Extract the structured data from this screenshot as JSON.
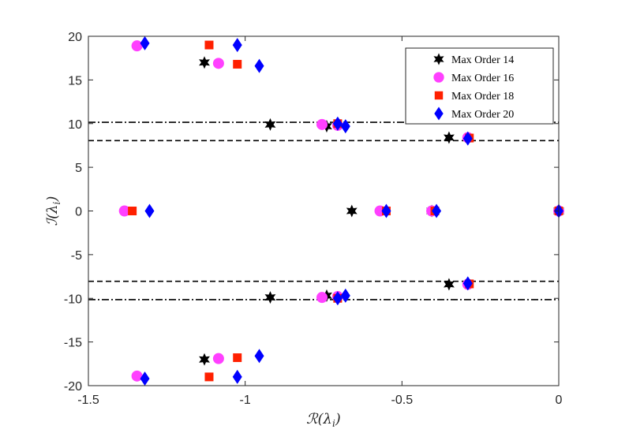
{
  "chart_data": {
    "type": "scatter",
    "title": "",
    "xlabel": "ℛ(λ_i)",
    "ylabel": "ℐ(λ_i)",
    "xlabel_main": "ℛ(λ",
    "xlabel_sub": "i",
    "ylabel_main": "ℐ(λ",
    "ylabel_sub": "i",
    "xlim": [
      -1.5,
      0
    ],
    "ylim": [
      -20,
      20
    ],
    "xticks": [
      -1.5,
      -1,
      -0.5,
      0
    ],
    "xtick_labels": [
      "-1.5",
      "-1",
      "-0.5",
      "0"
    ],
    "yticks": [
      -20,
      -15,
      -10,
      -5,
      0,
      5,
      10,
      15,
      20
    ],
    "ytick_labels": [
      "-20",
      "-15",
      "-10",
      "-5",
      "0",
      "5",
      "10",
      "15",
      "20"
    ],
    "grid": false,
    "legend_position": "top-right",
    "reference_lines": [
      {
        "y": 10.15,
        "style": "dashdot",
        "color": "#000000"
      },
      {
        "y": 8.05,
        "style": "dashed",
        "color": "#000000"
      },
      {
        "y": -8.05,
        "style": "dashed",
        "color": "#000000"
      },
      {
        "y": -10.15,
        "style": "dashdot",
        "color": "#000000"
      }
    ],
    "series": [
      {
        "name": "Max Order 14",
        "marker": "hexagram",
        "color": "#000000",
        "points": [
          {
            "x": -1.13,
            "y": 17.0
          },
          {
            "x": -1.13,
            "y": -17.0
          },
          {
            "x": -0.92,
            "y": 9.9
          },
          {
            "x": -0.92,
            "y": -9.9
          },
          {
            "x": -0.74,
            "y": 9.7
          },
          {
            "x": -0.74,
            "y": -9.7
          },
          {
            "x": -0.66,
            "y": 0
          },
          {
            "x": -0.405,
            "y": 0
          },
          {
            "x": -0.35,
            "y": 8.4
          },
          {
            "x": -0.35,
            "y": -8.4
          },
          {
            "x": 0,
            "y": 0
          }
        ]
      },
      {
        "name": "Max Order 16",
        "marker": "circle",
        "color": "#ff40ff",
        "points": [
          {
            "x": -1.345,
            "y": 18.9
          },
          {
            "x": -1.345,
            "y": -18.9
          },
          {
            "x": -1.085,
            "y": 16.9
          },
          {
            "x": -1.085,
            "y": -16.9
          },
          {
            "x": -0.755,
            "y": 9.9
          },
          {
            "x": -0.755,
            "y": -9.9
          },
          {
            "x": -0.705,
            "y": 9.8
          },
          {
            "x": -0.705,
            "y": -9.8
          },
          {
            "x": -1.385,
            "y": 0
          },
          {
            "x": -0.57,
            "y": 0
          },
          {
            "x": -0.405,
            "y": 0
          },
          {
            "x": -0.29,
            "y": 8.4
          },
          {
            "x": -0.29,
            "y": -8.4
          },
          {
            "x": 0,
            "y": 0
          }
        ]
      },
      {
        "name": "Max Order 18",
        "marker": "square",
        "color": "#ff2000",
        "points": [
          {
            "x": -1.115,
            "y": 19.0
          },
          {
            "x": -1.115,
            "y": -19.0
          },
          {
            "x": -1.025,
            "y": 16.8
          },
          {
            "x": -1.025,
            "y": -16.8
          },
          {
            "x": -0.705,
            "y": 10.0
          },
          {
            "x": -0.705,
            "y": -10.0
          },
          {
            "x": -1.36,
            "y": 0
          },
          {
            "x": -0.55,
            "y": 0
          },
          {
            "x": -0.395,
            "y": 0
          },
          {
            "x": -0.285,
            "y": 8.35
          },
          {
            "x": -0.285,
            "y": -8.35
          },
          {
            "x": 0,
            "y": 0
          }
        ]
      },
      {
        "name": "Max Order 20",
        "marker": "diamond",
        "color": "#0000ff",
        "points": [
          {
            "x": -1.32,
            "y": 19.2
          },
          {
            "x": -1.32,
            "y": -19.2
          },
          {
            "x": -1.025,
            "y": 19.0
          },
          {
            "x": -1.025,
            "y": -19.0
          },
          {
            "x": -0.955,
            "y": 16.6
          },
          {
            "x": -0.955,
            "y": -16.6
          },
          {
            "x": -0.705,
            "y": 10.0
          },
          {
            "x": -0.705,
            "y": -10.0
          },
          {
            "x": -0.68,
            "y": 9.7
          },
          {
            "x": -0.68,
            "y": -9.7
          },
          {
            "x": -1.305,
            "y": 0
          },
          {
            "x": -0.55,
            "y": 0
          },
          {
            "x": -0.39,
            "y": 0
          },
          {
            "x": -0.29,
            "y": 8.3
          },
          {
            "x": -0.29,
            "y": -8.3
          },
          {
            "x": 0,
            "y": 0
          }
        ]
      }
    ]
  }
}
